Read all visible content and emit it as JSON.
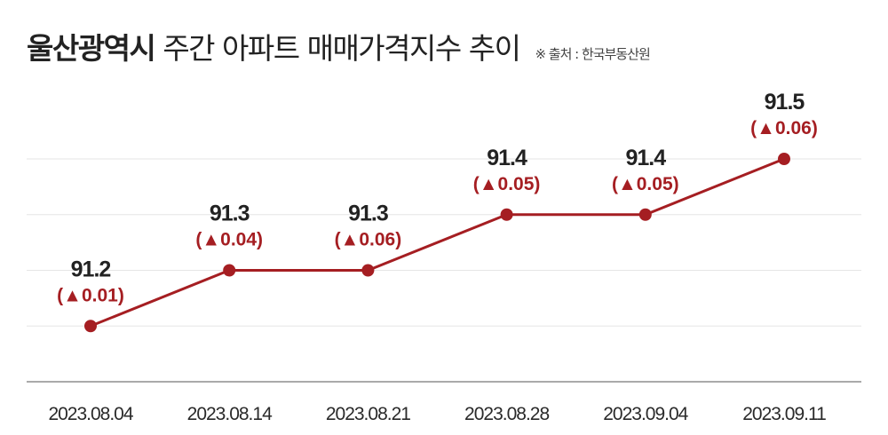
{
  "title": {
    "bold": "울산광역시",
    "rest": "주간 아파트 매매가격지수 추이",
    "source": "※ 출처 : 한국부동산원"
  },
  "colors": {
    "line": "#a51e22",
    "value_text": "#222222",
    "delta_text": "#a51e22",
    "grid": "#e6e6e6",
    "axis": "#aaaaaa"
  },
  "chart_data": {
    "type": "line",
    "categories": [
      "2023.08.04",
      "2023.08.14",
      "2023.08.21",
      "2023.08.28",
      "2023.09.04",
      "2023.09.11"
    ],
    "values": [
      91.2,
      91.3,
      91.3,
      91.4,
      91.4,
      91.5
    ],
    "value_labels": [
      "91.2",
      "91.3",
      "91.3",
      "91.4",
      "91.4",
      "91.5"
    ],
    "delta_labels": [
      "(▲0.01)",
      "(▲0.04)",
      "(▲0.06)",
      "(▲0.05)",
      "(▲0.05)",
      "(▲0.06)"
    ],
    "ylim": [
      91.1,
      91.5
    ],
    "grid": true,
    "xlabel": "",
    "ylabel": ""
  }
}
